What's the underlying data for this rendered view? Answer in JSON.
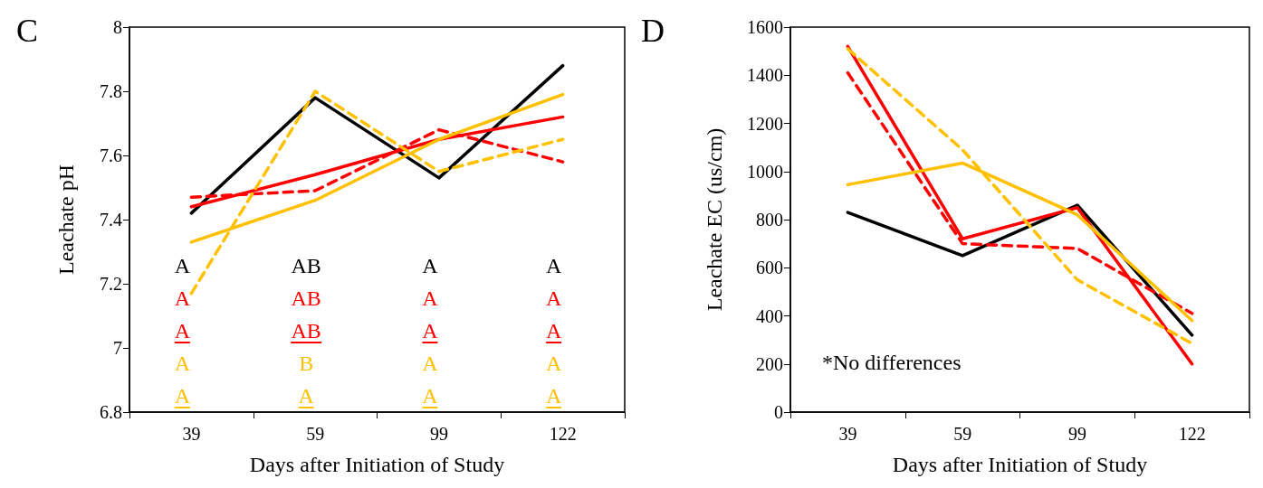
{
  "chart_data": [
    {
      "type": "line",
      "title": "C",
      "xlabel": "Days after Initiation of Study",
      "ylabel": "Leachate pH",
      "categories": [
        "39",
        "59",
        "99",
        "122"
      ],
      "ylim": [
        6.8,
        8
      ],
      "yticks": [
        6.8,
        7,
        7.2,
        7.4,
        7.6,
        7.8,
        8
      ],
      "grid": false,
      "marker": "none",
      "series": [
        {
          "color": "#000000",
          "line_style": "solid",
          "values": [
            7.42,
            7.78,
            7.53,
            7.88
          ]
        },
        {
          "color": "#ff0000",
          "line_style": "solid",
          "values": [
            7.44,
            7.54,
            7.65,
            7.72
          ]
        },
        {
          "color": "#ff0000",
          "line_style": "dashed",
          "values": [
            7.47,
            7.49,
            7.68,
            7.58
          ]
        },
        {
          "color": "#ffc000",
          "line_style": "solid",
          "values": [
            7.33,
            7.46,
            7.65,
            7.79
          ]
        },
        {
          "color": "#ffc000",
          "line_style": "dashed",
          "values": [
            7.17,
            7.8,
            7.55,
            7.65
          ]
        }
      ],
      "annotations": [
        "A",
        "AB",
        "A",
        "A",
        "A",
        "AB",
        "A",
        "A",
        "A",
        "AB",
        "A",
        "A",
        "A",
        "B",
        "A",
        "A",
        "A",
        "A",
        "A",
        "A"
      ]
    },
    {
      "type": "line",
      "title": "D",
      "xlabel": "Days after Initiation of Study",
      "ylabel": "Leachate EC (us/cm)",
      "categories": [
        "39",
        "59",
        "99",
        "122"
      ],
      "ylim": [
        0,
        1600
      ],
      "yticks": [
        0,
        200,
        400,
        600,
        800,
        1000,
        1200,
        1400,
        1600
      ],
      "grid": false,
      "marker": "none",
      "series": [
        {
          "color": "#000000",
          "line_style": "solid",
          "values": [
            830,
            650,
            860,
            320
          ]
        },
        {
          "color": "#ff0000",
          "line_style": "solid",
          "values": [
            1520,
            720,
            850,
            200
          ]
        },
        {
          "color": "#ff0000",
          "line_style": "dashed",
          "values": [
            1410,
            700,
            680,
            410
          ]
        },
        {
          "color": "#ffc000",
          "line_style": "solid",
          "values": [
            945,
            1035,
            820,
            380
          ]
        },
        {
          "color": "#ffc000",
          "line_style": "dashed",
          "values": [
            1510,
            1090,
            550,
            285
          ]
        }
      ],
      "annotations": [
        "*No differences"
      ]
    }
  ]
}
